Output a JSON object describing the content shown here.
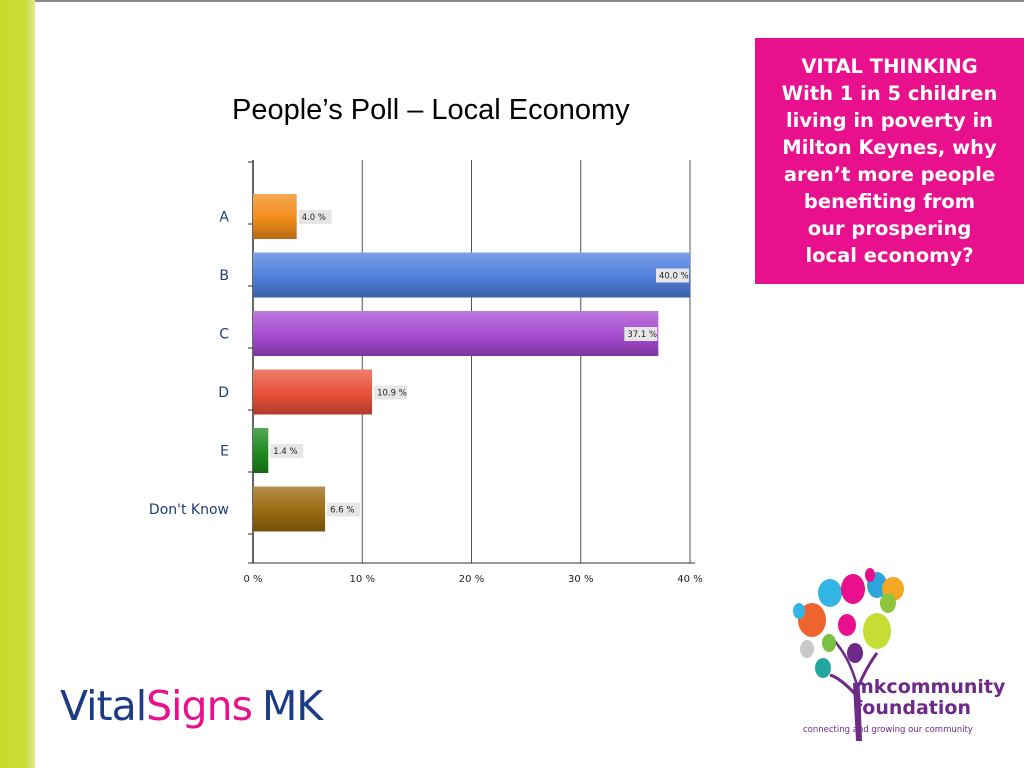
{
  "slide": {
    "title": "People’s Poll – Local Economy"
  },
  "callout": {
    "lines": [
      "VITAL THINKING",
      "With 1 in 5 children",
      "living in poverty in",
      "Milton Keynes, why",
      "aren’t more people",
      "benefiting from",
      "our prospering",
      "local economy?"
    ],
    "background_color": "#e8108c"
  },
  "chart_data": {
    "type": "bar",
    "orientation": "horizontal",
    "title": "",
    "xlabel": "",
    "ylabel": "",
    "categories": [
      "A",
      "B",
      "C",
      "D",
      "E",
      "Don't Know"
    ],
    "values": [
      4.0,
      40.0,
      37.1,
      10.9,
      1.4,
      6.6
    ],
    "value_labels": [
      "4.0 %",
      "40.0 %",
      "37.1 %",
      "10.9 %",
      "1.4 %",
      "6.6 %"
    ],
    "bar_colors": [
      "#f28c1a",
      "#4f7fdc",
      "#a64bd0",
      "#e8503a",
      "#1f8a1f",
      "#9a6a10"
    ],
    "xlim": [
      0,
      40
    ],
    "xticks": [
      "0 %",
      "10 %",
      "20 %",
      "30 %",
      "40 %"
    ],
    "grid": true,
    "legend": "none"
  },
  "footer": {
    "vitalsigns_logo": [
      "Vital",
      "Signs",
      "MK"
    ],
    "mk_logo": {
      "name_lines": [
        "mkcommunity",
        "foundation"
      ],
      "tagline": "connecting and growing our community"
    }
  }
}
